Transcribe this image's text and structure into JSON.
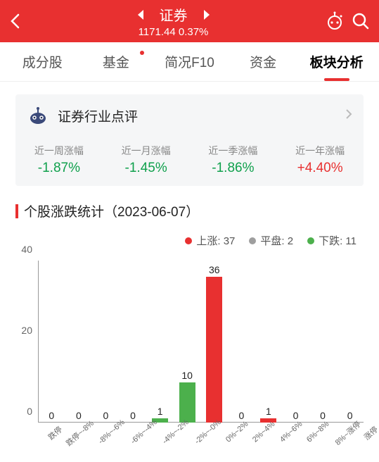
{
  "header": {
    "title": "证券",
    "price": "1171.44",
    "change": "0.37%"
  },
  "tabs": {
    "items": [
      {
        "label": "成分股",
        "dot": false
      },
      {
        "label": "基金",
        "dot": true
      },
      {
        "label": "简况F10",
        "dot": false
      },
      {
        "label": "资金",
        "dot": false
      },
      {
        "label": "板块分析",
        "dot": false
      }
    ],
    "active": 4
  },
  "card": {
    "title": "证券行业点评",
    "stats": [
      {
        "label": "近一周涨幅",
        "value": "-1.87%",
        "sign": "neg"
      },
      {
        "label": "近一月涨幅",
        "value": "-1.45%",
        "sign": "neg"
      },
      {
        "label": "近一季涨幅",
        "value": "-1.86%",
        "sign": "neg"
      },
      {
        "label": "近一年涨幅",
        "value": "+4.40%",
        "sign": "pos"
      }
    ]
  },
  "section_title": "个股涨跌统计（2023-06-07）",
  "chart": {
    "type": "bar",
    "legend": [
      {
        "label": "上涨: 37",
        "color": "#e83030"
      },
      {
        "label": "平盘: 2",
        "color": "#9e9e9e"
      },
      {
        "label": "下跌: 11",
        "color": "#4cb04c"
      }
    ],
    "y_ticks": [
      0,
      20,
      40
    ],
    "y_max": 40,
    "categories": [
      "跌停",
      "跌停~-8%",
      "-8%~-6%",
      "-6%~-4%",
      "-4%~-2%",
      "-2%~-0%",
      "0%~2%",
      "2%~4%",
      "4%~6%",
      "6%~8%",
      "8%~涨停",
      "涨停"
    ],
    "values": [
      0,
      0,
      0,
      0,
      1,
      10,
      36,
      0,
      1,
      0,
      0,
      0
    ],
    "bar_colors": [
      "#4cb04c",
      "#4cb04c",
      "#4cb04c",
      "#4cb04c",
      "#4cb04c",
      "#4cb04c",
      "#e83030",
      "#e83030",
      "#e83030",
      "#e83030",
      "#e83030",
      "#e83030"
    ],
    "background_color": "#ffffff",
    "axis_color": "#999999",
    "label_color": "#222222",
    "label_fontsize": 14
  }
}
